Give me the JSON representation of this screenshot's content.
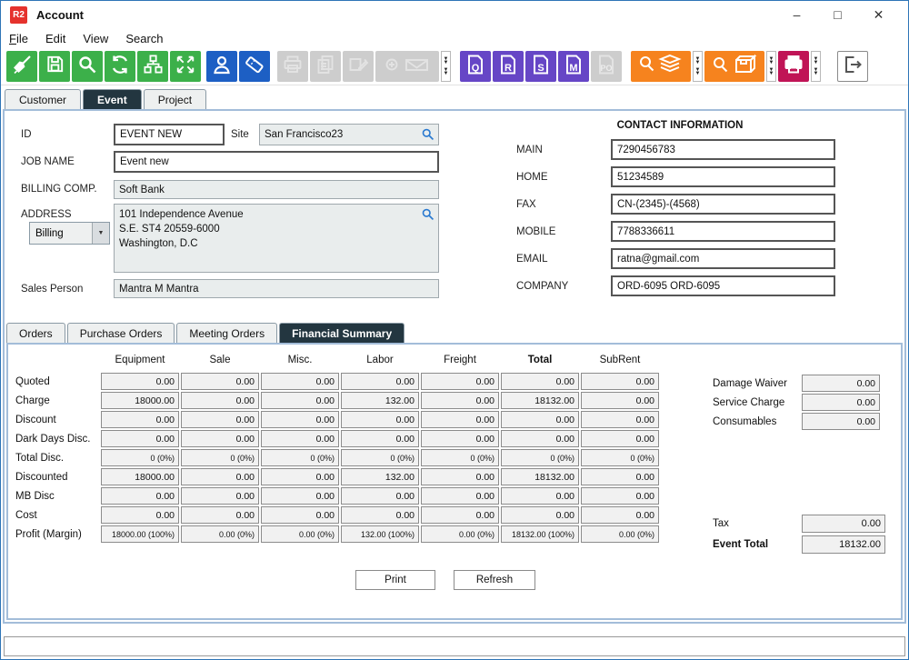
{
  "window": {
    "title": "Account",
    "logo": "R2",
    "controls": {
      "minimize": "–",
      "maximize": "□",
      "close": "✕"
    }
  },
  "menu": {
    "items": [
      "File",
      "Edit",
      "View",
      "Search"
    ]
  },
  "toolbar": {
    "doc_letters": {
      "q": "Q",
      "r": "R",
      "s": "S",
      "m": "M",
      "po": "PO"
    }
  },
  "tabs": {
    "items": [
      "Customer",
      "Event",
      "Project"
    ],
    "active": "Event"
  },
  "form": {
    "id": {
      "label": "ID",
      "value": "EVENT NEW"
    },
    "site": {
      "label": "Site",
      "value": "San Francisco23"
    },
    "job_name": {
      "label": "JOB NAME",
      "value": "Event new"
    },
    "billing_comp": {
      "label": "BILLING COMP.",
      "value": "Soft Bank"
    },
    "address": {
      "label": "ADDRESS",
      "type_selected": "Billing",
      "value": "101 Independence Avenue\nS.E. ST4 20559-6000\nWashington, D.C"
    },
    "sales_person": {
      "label": "Sales Person",
      "value": "Mantra M Mantra"
    }
  },
  "contact": {
    "title": "CONTACT INFORMATION",
    "fields": [
      {
        "label": "MAIN",
        "value": "7290456783"
      },
      {
        "label": "HOME",
        "value": "51234589"
      },
      {
        "label": "FAX",
        "value": "CN-(2345)-(4568)"
      },
      {
        "label": "MOBILE",
        "value": "7788336611"
      },
      {
        "label": "EMAIL",
        "value": "ratna@gmail.com"
      },
      {
        "label": "COMPANY",
        "value": "ORD-6095 ORD-6095"
      }
    ]
  },
  "subtabs": {
    "items": [
      "Orders",
      "Purchase Orders",
      "Meeting Orders",
      "Financial Summary"
    ],
    "active": "Financial Summary"
  },
  "financial": {
    "columns": [
      "Equipment",
      "Sale",
      "Misc.",
      "Labor",
      "Freight",
      "Total",
      "SubRent"
    ],
    "rows": [
      {
        "label": "Quoted",
        "values": [
          "0.00",
          "0.00",
          "0.00",
          "0.00",
          "0.00",
          "0.00",
          "0.00"
        ]
      },
      {
        "label": "Charge",
        "values": [
          "18000.00",
          "0.00",
          "0.00",
          "132.00",
          "0.00",
          "18132.00",
          "0.00"
        ]
      },
      {
        "label": "Discount",
        "values": [
          "0.00",
          "0.00",
          "0.00",
          "0.00",
          "0.00",
          "0.00",
          "0.00"
        ]
      },
      {
        "label": "Dark Days Disc.",
        "values": [
          "0.00",
          "0.00",
          "0.00",
          "0.00",
          "0.00",
          "0.00",
          "0.00"
        ]
      },
      {
        "label": "Total Disc.",
        "values": [
          "0 (0%)",
          "0 (0%)",
          "0 (0%)",
          "0 (0%)",
          "0 (0%)",
          "0 (0%)",
          "0 (0%)"
        ]
      },
      {
        "label": "Discounted",
        "values": [
          "18000.00",
          "0.00",
          "0.00",
          "132.00",
          "0.00",
          "18132.00",
          "0.00"
        ]
      },
      {
        "label": "MB Disc",
        "values": [
          "0.00",
          "0.00",
          "0.00",
          "0.00",
          "0.00",
          "0.00",
          "0.00"
        ]
      },
      {
        "label": "Cost",
        "values": [
          "0.00",
          "0.00",
          "0.00",
          "0.00",
          "0.00",
          "0.00",
          "0.00"
        ]
      },
      {
        "label": "Profit (Margin)",
        "values": [
          "18000.00 (100%)",
          "0.00 (0%)",
          "0.00 (0%)",
          "132.00 (100%)",
          "0.00 (0%)",
          "18132.00 (100%)",
          "0.00 (0%)"
        ]
      }
    ],
    "side_fields": [
      {
        "label": "Damage Waiver",
        "value": "0.00"
      },
      {
        "label": "Service Charge",
        "value": "0.00"
      },
      {
        "label": "Consumables",
        "value": "0.00"
      }
    ],
    "tax": {
      "label": "Tax",
      "value": "0.00"
    },
    "event_total": {
      "label": "Event Total",
      "value": "18132.00"
    },
    "buttons": {
      "print": "Print",
      "refresh": "Refresh"
    }
  },
  "colors": {
    "green": "#3cb04a",
    "blue": "#1d5fc4",
    "purple": "#6646c6",
    "orange": "#f6831e",
    "magenta": "#c01456",
    "active_tab": "#233640",
    "logo_red": "#e5322d"
  }
}
